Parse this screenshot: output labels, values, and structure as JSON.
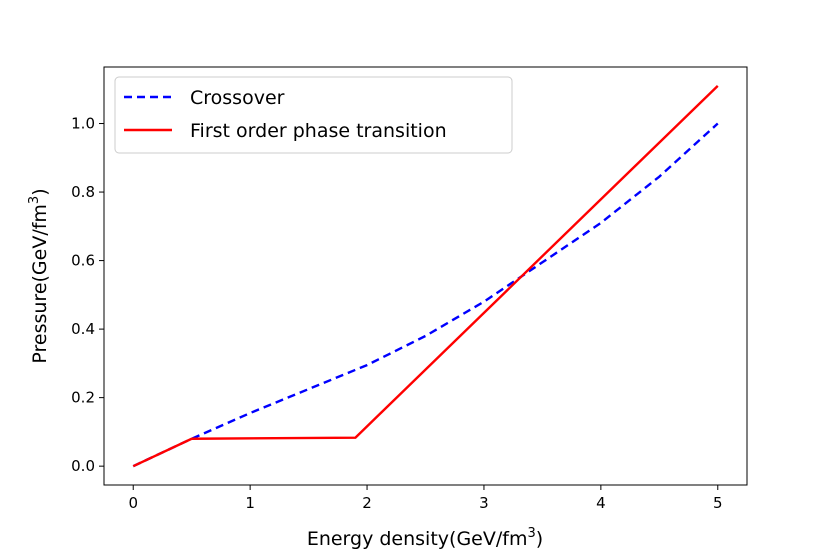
{
  "chart_data": {
    "type": "line",
    "title": "",
    "xlabel": "Energy density(GeV/fm",
    "xlabel_sup": "3",
    "xlabel_close": ")",
    "ylabel": "Pressure(GeV/fm",
    "ylabel_sup": "3",
    "ylabel_close": ")",
    "xlim": [
      -0.25,
      5.25
    ],
    "ylim": [
      -0.055,
      1.165
    ],
    "xticks": [
      0,
      1,
      2,
      3,
      4,
      5
    ],
    "xtick_labels": [
      "0",
      "1",
      "2",
      "3",
      "4",
      "5"
    ],
    "yticks": [
      0.0,
      0.2,
      0.4,
      0.6,
      0.8,
      1.0
    ],
    "ytick_labels": [
      "0.0",
      "0.2",
      "0.4",
      "0.6",
      "0.8",
      "1.0"
    ],
    "grid": false,
    "legend_position": "top-left",
    "series": [
      {
        "name": "Crossover",
        "color": "#0000ff",
        "style": "dashed",
        "x": [
          0,
          0.5,
          1.0,
          1.5,
          2.0,
          2.5,
          3.0,
          3.5,
          4.0,
          4.5,
          5.0
        ],
        "y": [
          0,
          0.08,
          0.155,
          0.225,
          0.295,
          0.38,
          0.48,
          0.595,
          0.71,
          0.845,
          1.0
        ]
      },
      {
        "name": "First order phase transition",
        "color": "#ff0000",
        "style": "solid",
        "x": [
          0,
          0.5,
          1.9,
          5.0
        ],
        "y": [
          0,
          0.08,
          0.083,
          1.11
        ]
      }
    ]
  }
}
